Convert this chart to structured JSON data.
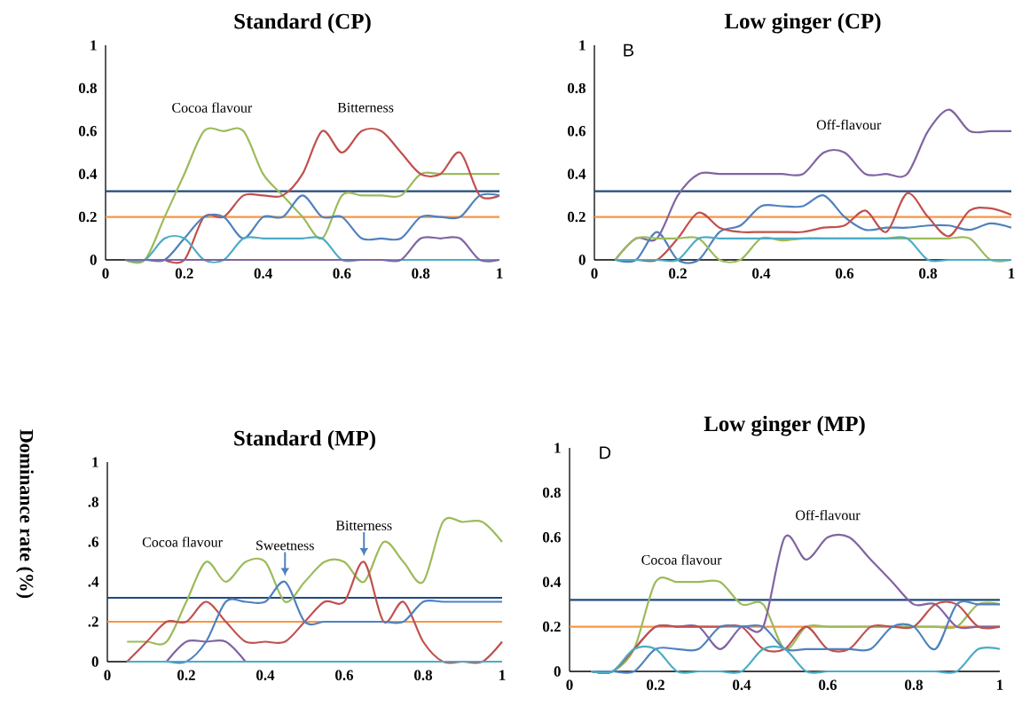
{
  "chart_data": [
    {
      "type": "line",
      "title": "Standard (CP)",
      "x": [
        0.05,
        0.1,
        0.15,
        0.2,
        0.25,
        0.3,
        0.35,
        0.4,
        0.45,
        0.5,
        0.55,
        0.6,
        0.65,
        0.7,
        0.75,
        0.8,
        0.85,
        0.9,
        0.95,
        1.0
      ],
      "xlim": [
        0,
        1
      ],
      "xticks": [
        0,
        0.2,
        0.4,
        0.6,
        0.8,
        1
      ],
      "ylim": [
        0,
        1
      ],
      "yticks": [
        0,
        0.2,
        0.4,
        0.6,
        0.8,
        1
      ],
      "series": [
        {
          "color": "#9bbb59",
          "values": [
            0,
            0,
            0.2,
            0.4,
            0.6,
            0.6,
            0.6,
            0.4,
            0.3,
            0.2,
            0.1,
            0.3,
            0.3,
            0.3,
            0.3,
            0.4,
            0.4,
            0.4,
            0.4,
            0.4
          ]
        },
        {
          "color": "#c0504d",
          "values": [
            null,
            null,
            0,
            0,
            0.2,
            0.2,
            0.3,
            0.3,
            0.3,
            0.4,
            0.6,
            0.5,
            0.6,
            0.6,
            0.5,
            0.4,
            0.4,
            0.5,
            0.3,
            0.3
          ]
        },
        {
          "color": "#4f81bd",
          "values": [
            0,
            0,
            0,
            0.1,
            0.2,
            0.2,
            0.1,
            0.2,
            0.2,
            0.3,
            0.2,
            0.2,
            0.1,
            0.1,
            0.1,
            0.2,
            0.2,
            0.2,
            0.3,
            0.3
          ]
        },
        {
          "color": "#4bacc6",
          "values": [
            0,
            0,
            0.1,
            0.1,
            0,
            0,
            0.1,
            0.1,
            0.1,
            0.1,
            0.1,
            0,
            0,
            0,
            0,
            0,
            0,
            0,
            0,
            0
          ]
        },
        {
          "color": "#8064a2",
          "values": [
            0,
            0,
            0,
            0,
            0,
            0,
            0,
            0,
            0,
            0,
            0,
            0,
            0,
            0,
            0,
            0.1,
            0.1,
            0.1,
            0,
            0
          ]
        }
      ],
      "ref_lines": [
        {
          "axis": "y",
          "value": 0.32,
          "color": "#1f497d"
        },
        {
          "axis": "y",
          "value": 0.2,
          "color": "#f79646"
        }
      ],
      "annotations": [
        "Cocoa flavour",
        "Bitterness"
      ]
    },
    {
      "type": "line",
      "title": "Low ginger (CP)",
      "x": [
        0.05,
        0.1,
        0.15,
        0.2,
        0.25,
        0.3,
        0.35,
        0.4,
        0.45,
        0.5,
        0.55,
        0.6,
        0.65,
        0.7,
        0.75,
        0.8,
        0.85,
        0.9,
        0.95,
        1.0
      ],
      "xlim": [
        0,
        1
      ],
      "xticks": [
        0,
        0.2,
        0.4,
        0.6,
        0.8,
        1
      ],
      "ylim": [
        0,
        1
      ],
      "yticks": [
        0,
        0.2,
        0.4,
        0.6,
        0.8,
        1
      ],
      "series": [
        {
          "color": "#8064a2",
          "values": [
            0,
            0.1,
            0.1,
            0.3,
            0.4,
            0.4,
            0.4,
            0.4,
            0.4,
            0.4,
            0.5,
            0.5,
            0.4,
            0.4,
            0.4,
            0.6,
            0.7,
            0.6,
            0.6,
            0.6
          ]
        },
        {
          "color": "#4f81bd",
          "values": [
            0,
            0,
            0.13,
            0,
            0,
            0.13,
            0.16,
            0.25,
            0.25,
            0.25,
            0.3,
            0.2,
            0.14,
            0.15,
            0.15,
            0.16,
            0.16,
            0.14,
            0.17,
            0.15
          ]
        },
        {
          "color": "#c0504d",
          "values": [
            0,
            0,
            0,
            0.1,
            0.22,
            0.15,
            0.13,
            0.13,
            0.13,
            0.13,
            0.15,
            0.16,
            0.23,
            0.13,
            0.31,
            0.2,
            0.11,
            0.23,
            0.24,
            0.21
          ]
        },
        {
          "color": "#9bbb59",
          "values": [
            0,
            0.1,
            0.1,
            0.1,
            0.1,
            0,
            0,
            0.1,
            0.09,
            0.1,
            0.1,
            0.1,
            0.1,
            0.1,
            0.1,
            0.1,
            0.1,
            0.1,
            0,
            0
          ]
        },
        {
          "color": "#4bacc6",
          "values": [
            0,
            0,
            0,
            0,
            0.1,
            0.1,
            0.1,
            0.1,
            0.1,
            0.1,
            0.1,
            0.1,
            0.1,
            0.1,
            0.1,
            0,
            0,
            0,
            0,
            0
          ]
        }
      ],
      "ref_lines": [
        {
          "axis": "y",
          "value": 0.32,
          "color": "#1f497d"
        },
        {
          "axis": "y",
          "value": 0.2,
          "color": "#f79646"
        }
      ],
      "annotations": [
        "B",
        "Off-flavour"
      ]
    },
    {
      "type": "line",
      "title": "Standard (MP)",
      "ylabel": "Dominance rate (%)",
      "x": [
        0.05,
        0.1,
        0.15,
        0.2,
        0.25,
        0.3,
        0.35,
        0.4,
        0.45,
        0.5,
        0.55,
        0.6,
        0.65,
        0.7,
        0.75,
        0.8,
        0.85,
        0.9,
        0.95,
        1.0
      ],
      "xlim": [
        0,
        1
      ],
      "xticks": [
        0,
        0.2,
        0.4,
        0.6,
        0.8,
        1
      ],
      "ylim": [
        0,
        1
      ],
      "yticks": [
        0,
        {
          "value": 0.2,
          "label": ".2"
        },
        {
          "value": 0.4,
          "label": ".4"
        },
        {
          "value": 0.6,
          "label": ".6"
        },
        {
          "value": 0.8,
          "label": ".8"
        },
        1
      ],
      "series": [
        {
          "color": "#9bbb59",
          "values": [
            0.1,
            0.1,
            0.1,
            0.3,
            0.5,
            0.4,
            0.5,
            0.5,
            0.3,
            0.4,
            0.5,
            0.5,
            0.4,
            0.6,
            0.5,
            0.4,
            0.7,
            0.7,
            0.7,
            0.6
          ]
        },
        {
          "color": "#c0504d",
          "values": [
            0,
            0.1,
            0.2,
            0.2,
            0.3,
            0.2,
            0.1,
            0.1,
            0.1,
            0.2,
            0.3,
            0.3,
            0.5,
            0.2,
            0.3,
            0.1,
            0,
            0,
            0,
            0.1
          ]
        },
        {
          "color": "#4f81bd",
          "values": [
            0,
            0,
            0,
            0,
            0.1,
            0.3,
            0.3,
            0.3,
            0.4,
            0.2,
            0.2,
            0.2,
            0.2,
            0.2,
            0.2,
            0.3,
            0.3,
            0.3,
            0.3,
            0.3
          ]
        },
        {
          "color": "#8064a2",
          "values": [
            null,
            null,
            0,
            0.1,
            0.1,
            0.1,
            0,
            null,
            null,
            null,
            null,
            null,
            null,
            null,
            null,
            null,
            null,
            null,
            null,
            null
          ]
        },
        {
          "color": "#4bacc6",
          "values": [
            0,
            0,
            0,
            0,
            0,
            0,
            0,
            0,
            0,
            0,
            0,
            0,
            0,
            0,
            0,
            0,
            0,
            0,
            0,
            0
          ]
        }
      ],
      "ref_lines": [
        {
          "axis": "y",
          "value": 0.32,
          "color": "#1f497d"
        },
        {
          "axis": "y",
          "value": 0.2,
          "color": "#f79646"
        }
      ],
      "annotations": [
        "Cocoa flavour",
        {
          "text": "Sweetness",
          "x": 0.45,
          "y": 0.42
        },
        {
          "text": "Bitterness",
          "x": 0.65,
          "y": 0.52
        }
      ]
    },
    {
      "type": "line",
      "title": "Low ginger (MP)",
      "x": [
        0.05,
        0.1,
        0.15,
        0.2,
        0.25,
        0.3,
        0.35,
        0.4,
        0.45,
        0.5,
        0.55,
        0.6,
        0.65,
        0.7,
        0.75,
        0.8,
        0.85,
        0.9,
        0.95,
        1.0
      ],
      "xlim": [
        0,
        1
      ],
      "xticks": [
        0,
        0.2,
        0.4,
        0.6,
        0.8,
        1
      ],
      "ylim": [
        0,
        1
      ],
      "yticks": [
        0,
        0.2,
        0.4,
        0.6,
        0.8,
        1
      ],
      "series": [
        {
          "color": "#9bbb59",
          "values": [
            0,
            0,
            0.1,
            0.4,
            0.4,
            0.4,
            0.4,
            0.3,
            0.3,
            0.1,
            0.2,
            0.2,
            0.2,
            0.2,
            0.2,
            0.2,
            0.2,
            0.2,
            0.3,
            0.3
          ]
        },
        {
          "color": "#8064a2",
          "values": [
            0,
            0,
            0.1,
            0.2,
            0.2,
            0.2,
            0.1,
            0.2,
            0.2,
            0.6,
            0.5,
            0.6,
            0.6,
            0.5,
            0.4,
            0.3,
            0.3,
            0.2,
            0.2,
            0.2
          ]
        },
        {
          "color": "#c0504d",
          "values": [
            0,
            0,
            0.1,
            0.2,
            0.2,
            0.2,
            0.2,
            0.2,
            0.1,
            0.1,
            0.2,
            0.1,
            0.1,
            0.2,
            0.2,
            0.2,
            0.3,
            0.3,
            0.2,
            0.2
          ]
        },
        {
          "color": "#4f81bd",
          "values": [
            0,
            0,
            0,
            0.1,
            0.1,
            0.1,
            0.2,
            0.2,
            0.2,
            0.1,
            0.1,
            0.1,
            0.1,
            0.1,
            0.2,
            0.2,
            0.1,
            0.3,
            0.3,
            0.3
          ]
        },
        {
          "color": "#4bacc6",
          "values": [
            0,
            0,
            0.1,
            0.1,
            0,
            0,
            0,
            0,
            0.1,
            0.1,
            0,
            0,
            0,
            0,
            0,
            0,
            0,
            0,
            0.1,
            0.1
          ]
        }
      ],
      "ref_lines": [
        {
          "axis": "y",
          "value": 0.32,
          "color": "#1f497d"
        },
        {
          "axis": "y",
          "value": 0.2,
          "color": "#f79646"
        }
      ],
      "annotations": [
        "D",
        "Cocoa flavour",
        "Off-flavour"
      ]
    }
  ]
}
